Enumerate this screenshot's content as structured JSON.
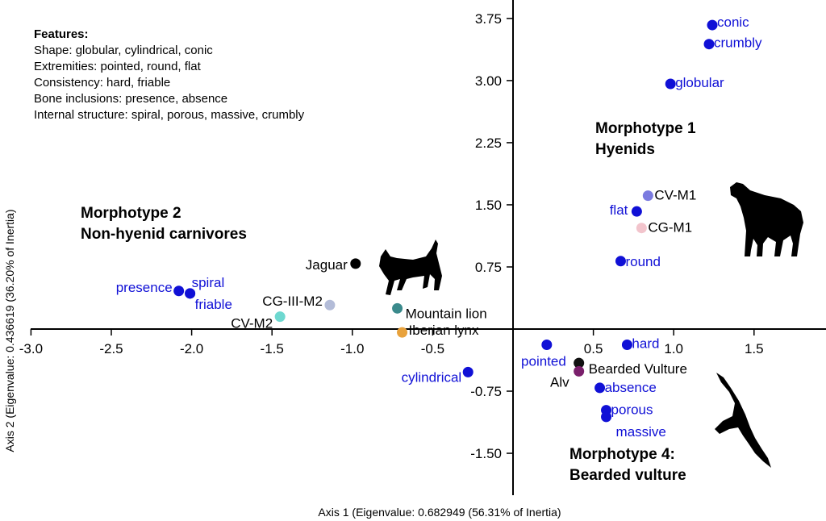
{
  "features": {
    "title": "Features:",
    "lines": [
      "Shape: globular, cylindrical, conic",
      "Extremities: pointed, round, flat",
      "Consistency: hard, friable",
      "Bone inclusions: presence, absence",
      "Internal structure: spiral, porous, massive, crumbly"
    ]
  },
  "chart_data": {
    "type": "scatter",
    "xlabel": "Axis 1 (Eigenvalue: 0.682949 (56.31% of Inertia)",
    "ylabel": "Axis 2 (Eigenvalue: 0.436619 (36.20% of Inertia)",
    "xlim": [
      -3.0,
      1.95
    ],
    "ylim": [
      -2.0,
      3.95
    ],
    "x_ticks": [
      "-3.0",
      "-2.5",
      "-2.0",
      "-1.5",
      "-1.0",
      "-0.5",
      "0.5",
      "1.0",
      "1.5"
    ],
    "y_ticks": [
      "3.75",
      "3.00",
      "2.25",
      "1.50",
      "0.75",
      "-0.75",
      "-1.50"
    ],
    "grid": false,
    "variable_color": "#1010d6",
    "variables": [
      {
        "label": "conic",
        "x": 1.24,
        "y": 3.67
      },
      {
        "label": "crumbly",
        "x": 1.22,
        "y": 3.44
      },
      {
        "label": "globular",
        "x": 0.98,
        "y": 2.96
      },
      {
        "label": "flat",
        "x": 0.77,
        "y": 1.42
      },
      {
        "label": "round",
        "x": 0.67,
        "y": 0.82
      },
      {
        "label": "hard",
        "x": 0.71,
        "y": -0.19
      },
      {
        "label": "pointed",
        "x": 0.21,
        "y": -0.19
      },
      {
        "label": "absence",
        "x": 0.54,
        "y": -0.71
      },
      {
        "label": "porous",
        "x": 0.58,
        "y": -0.98
      },
      {
        "label": "massive",
        "x": 0.58,
        "y": -1.06
      },
      {
        "label": "presence",
        "x": -2.08,
        "y": 0.46
      },
      {
        "label": "spiral",
        "x": -2.01,
        "y": 0.43
      },
      {
        "label": "friable",
        "x": -2.01,
        "y": 0.43
      },
      {
        "label": "cylindrical",
        "x": -0.28,
        "y": -0.52
      }
    ],
    "observations": [
      {
        "label": "CV-M1",
        "x": 0.84,
        "y": 1.61,
        "color": "#7b7be0"
      },
      {
        "label": "CG-M1",
        "x": 0.8,
        "y": 1.22,
        "color": "#f2c4cc"
      },
      {
        "label": "Jaguar",
        "x": -0.98,
        "y": 0.79,
        "color": "#000000"
      },
      {
        "label": "CG-III-M2",
        "x": -1.14,
        "y": 0.29,
        "color": "#b3bcd8"
      },
      {
        "label": "CV-M2",
        "x": -1.45,
        "y": 0.15,
        "color": "#6ed8d0"
      },
      {
        "label": "Mountain lion",
        "x": -0.72,
        "y": 0.25,
        "color": "#3b8a8c"
      },
      {
        "label": "Iberian lynx",
        "x": -0.69,
        "y": -0.04,
        "color": "#e8a23c"
      },
      {
        "label": "Bearded Vulture",
        "x": 0.41,
        "y": -0.41,
        "color": "#111111"
      },
      {
        "label": "Alv",
        "x": 0.41,
        "y": -0.51,
        "color": "#7a1f6b"
      }
    ],
    "groups": [
      {
        "line1": "Morphotype 1",
        "line2": "Hyenids"
      },
      {
        "line1": "Morphotype 2",
        "line2": "Non-hyenid carnivores"
      },
      {
        "line1": "Morphotype 4:",
        "line2": "Bearded vulture"
      }
    ]
  }
}
